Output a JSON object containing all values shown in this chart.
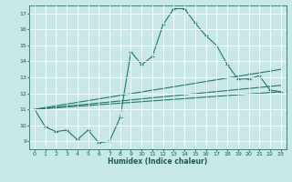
{
  "xlabel": "Humidex (Indice chaleur)",
  "bg_color": "#c8e8e8",
  "line_color": "#1a7a6e",
  "xlim": [
    -0.5,
    23.5
  ],
  "ylim": [
    8.5,
    17.5
  ],
  "xticks": [
    0,
    1,
    2,
    3,
    4,
    5,
    6,
    7,
    8,
    9,
    10,
    11,
    12,
    13,
    14,
    15,
    16,
    17,
    18,
    19,
    20,
    21,
    22,
    23
  ],
  "yticks": [
    9,
    10,
    11,
    12,
    13,
    14,
    15,
    16,
    17
  ],
  "main_line": {
    "x": [
      0,
      1,
      2,
      3,
      4,
      5,
      6,
      7,
      8,
      9,
      10,
      11,
      12,
      13,
      14,
      15,
      16,
      17,
      18,
      19,
      20,
      21,
      22,
      23
    ],
    "y": [
      11.0,
      9.9,
      9.6,
      9.7,
      9.1,
      9.7,
      8.9,
      9.0,
      10.5,
      14.6,
      13.8,
      14.3,
      16.3,
      17.3,
      17.3,
      16.4,
      15.6,
      15.0,
      13.8,
      12.9,
      12.9,
      13.1,
      12.2,
      12.1
    ]
  },
  "trend_lines": [
    {
      "x": [
        0,
        23
      ],
      "y": [
        11.0,
        13.5
      ]
    },
    {
      "x": [
        0,
        23
      ],
      "y": [
        11.0,
        12.5
      ]
    },
    {
      "x": [
        0,
        23
      ],
      "y": [
        11.0,
        12.1
      ]
    }
  ]
}
